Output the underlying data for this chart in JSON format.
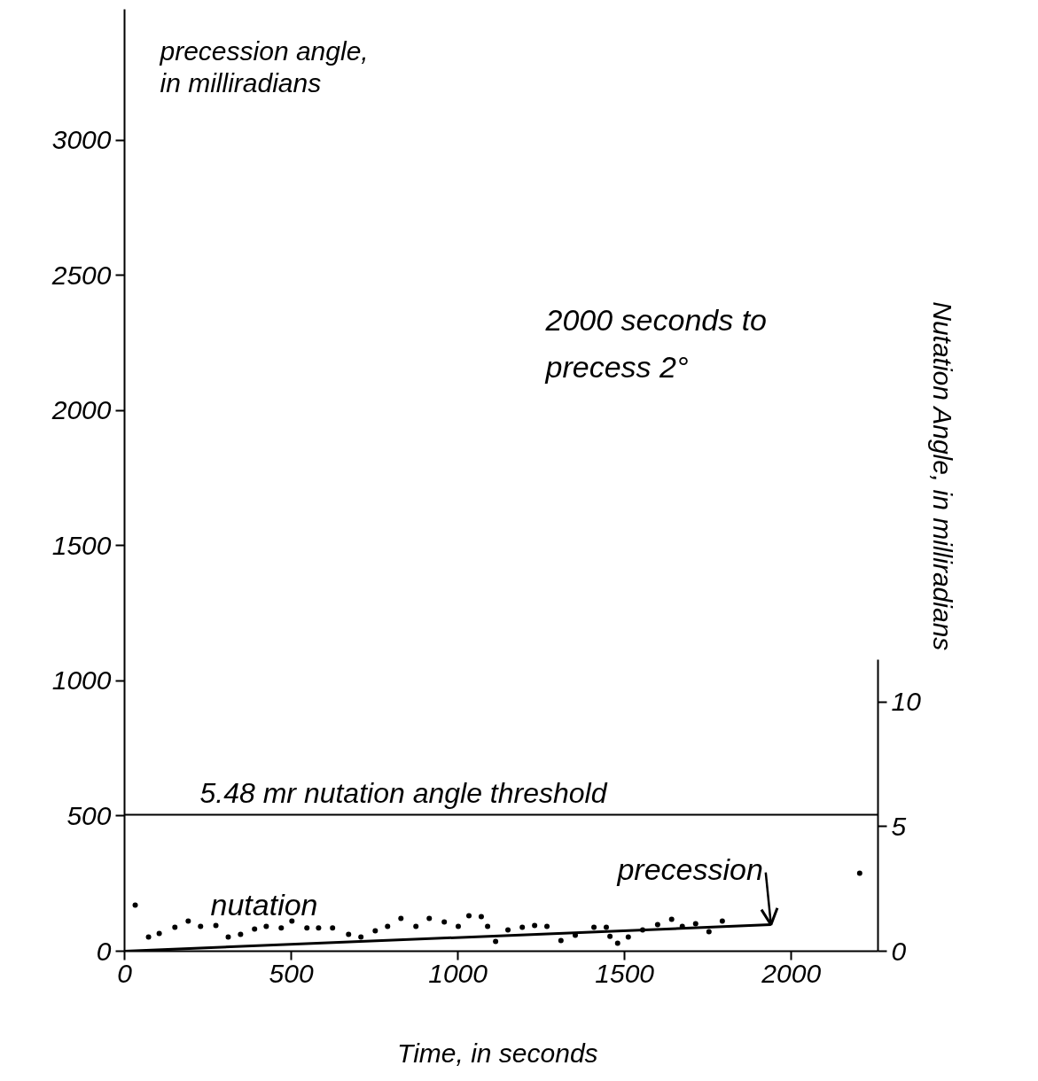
{
  "chart_data": {
    "type": "line",
    "xlabel": "Time,  in seconds",
    "ylabel": "precession angle,\nin milliradians",
    "y2label": "Nutation Angle,  in milliradians",
    "xlim": [
      0,
      2260
    ],
    "xticks": [
      0,
      500,
      1000,
      1500,
      2000
    ],
    "ylim": [
      0,
      3485
    ],
    "yticks": [
      0,
      500,
      1000,
      1500,
      2000,
      2500,
      3000
    ],
    "y2lim": [
      0,
      37.8
    ],
    "y2ticks": [
      0,
      5,
      10
    ],
    "grid": false,
    "series": [
      {
        "name": "precession",
        "color": "#000000",
        "x": [
          0,
          1939
        ],
        "values": [
          0,
          98
        ],
        "line_style": "solid"
      },
      {
        "name": "nutation",
        "type": "scatter",
        "axis": "y2",
        "color": "#000000",
        "marker": "circle",
        "x": [
          32,
          72,
          104,
          151,
          191,
          228,
          274,
          311,
          348,
          390,
          425,
          470,
          502,
          547,
          582,
          624,
          672,
          709,
          752,
          789,
          829,
          874,
          914,
          959,
          1001,
          1033,
          1070,
          1089,
          1113,
          1150,
          1193,
          1230,
          1267,
          1309,
          1352,
          1408,
          1445,
          1456,
          1479,
          1511,
          1554,
          1599,
          1641,
          1673,
          1713,
          1753,
          1793,
          2205
        ],
        "values": [
          1.85,
          0.57,
          0.71,
          0.96,
          1.21,
          1.0,
          1.03,
          0.57,
          0.68,
          0.89,
          1.0,
          0.93,
          1.21,
          0.93,
          0.93,
          0.93,
          0.68,
          0.57,
          0.82,
          1.0,
          1.32,
          1.0,
          1.32,
          1.17,
          1.0,
          1.42,
          1.39,
          1.0,
          0.39,
          0.85,
          0.96,
          1.03,
          1.0,
          0.43,
          0.64,
          0.96,
          0.96,
          0.6,
          0.32,
          0.57,
          0.85,
          1.07,
          1.28,
          1.0,
          1.1,
          0.78,
          1.21,
          3.13
        ]
      }
    ],
    "ref_lines": [
      {
        "axis": "y2",
        "value": 5.48,
        "label": "5.48 mr  nutation angle threshold",
        "color": "#000000",
        "line_style": "solid"
      }
    ],
    "annotations": [
      "2000 seconds to\nprecess 2°"
    ]
  }
}
